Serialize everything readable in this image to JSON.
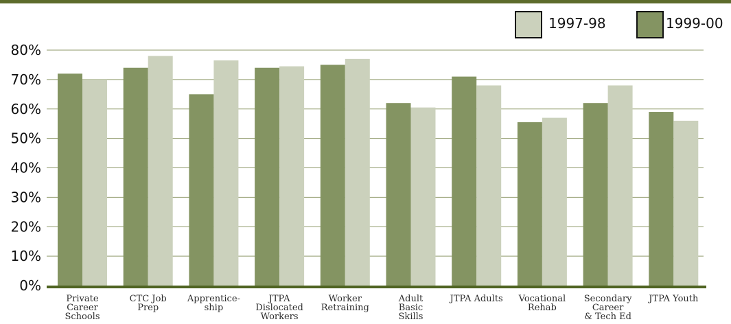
{
  "chart_data": {
    "type": "bar",
    "title": "",
    "xlabel": "",
    "ylabel": "",
    "ylim": [
      0,
      80
    ],
    "y_ticks": [
      "0%",
      "10%",
      "20%",
      "30%",
      "40%",
      "50%",
      "60%",
      "70%",
      "80%"
    ],
    "grid": true,
    "legend_position": "top-right",
    "categories": [
      [
        "Private",
        "Career",
        "Schools"
      ],
      [
        "CTC Job",
        "Prep"
      ],
      [
        "Apprentice-",
        "ship"
      ],
      [
        "JTPA",
        "Dislocated",
        "Workers"
      ],
      [
        "Worker",
        "Retraining"
      ],
      [
        "Adult",
        "Basic",
        "Skills"
      ],
      [
        "JTPA Adults"
      ],
      [
        "Vocational",
        "Rehab"
      ],
      [
        "Secondary",
        "Career",
        "& Tech Ed"
      ],
      [
        "JTPA Youth"
      ]
    ],
    "series": [
      {
        "name": "1999-00",
        "color": "#849462",
        "values": [
          72,
          74,
          65,
          74,
          75,
          62,
          71,
          55.5,
          62,
          59
        ]
      },
      {
        "name": "1997-98",
        "color": "#cbd1bc",
        "values": [
          70,
          78,
          76.5,
          74.5,
          77,
          60.5,
          68,
          57,
          68,
          56
        ]
      }
    ],
    "legend": [
      {
        "name": "1997-98",
        "color": "#cbd1bc"
      },
      {
        "name": "1999-00",
        "color": "#849462"
      }
    ],
    "colors": {
      "top_rule": "#5d6b2c",
      "baseline": "#4f6422",
      "grid": "#8f9a6a"
    }
  }
}
